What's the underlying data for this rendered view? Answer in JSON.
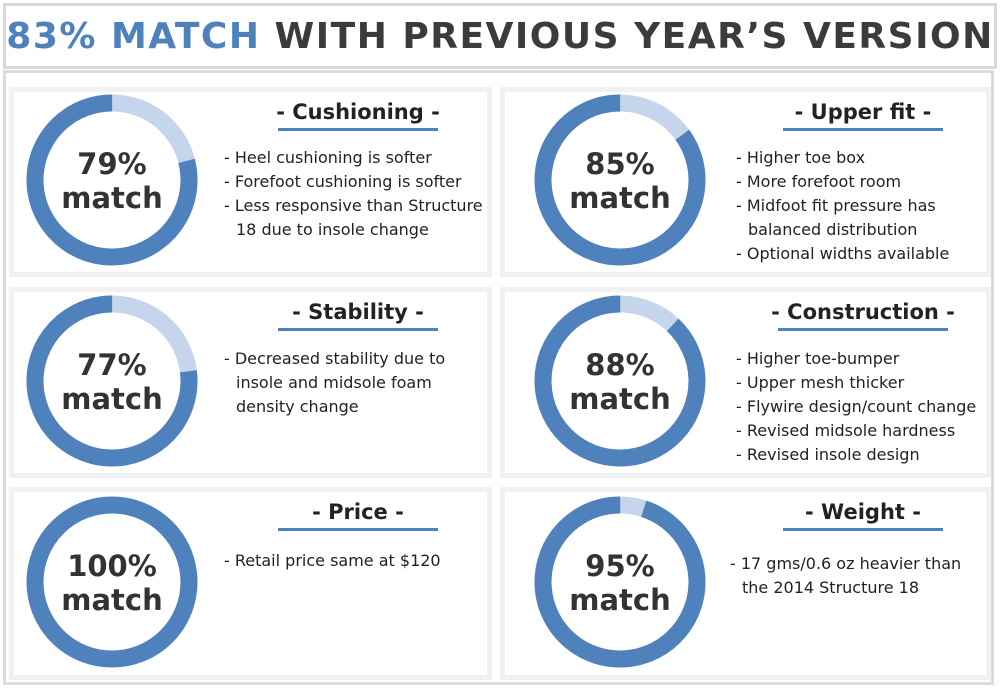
{
  "header": {
    "accent": "83% MATCH",
    "rest": "WITH PREVIOUS YEAR’S VERSION"
  },
  "colors": {
    "ring_filled": "#4f81bd",
    "ring_remaining": "#c5d5eb",
    "heading_bar": "#4f81bd",
    "panel_bg": "#f1f1f1"
  },
  "chart_data": [
    {
      "type": "pie",
      "title": "- Cushioning -",
      "value": 79,
      "max": 100,
      "label_pct": "79%",
      "label_word": "match",
      "bullets": [
        "- Heel cushioning is softer",
        "- Forefoot cushioning is softer",
        "- Less responsive than Structure 18 due to insole change"
      ]
    },
    {
      "type": "pie",
      "title": "- Upper fit -",
      "value": 85,
      "max": 100,
      "label_pct": "85%",
      "label_word": "match",
      "bullets": [
        "- Higher toe box",
        "- More forefoot room",
        "- Midfoot fit pressure has balanced distribution",
        "- Optional widths available"
      ]
    },
    {
      "type": "pie",
      "title": "- Stability -",
      "value": 77,
      "max": 100,
      "label_pct": "77%",
      "label_word": "match",
      "bullets": [
        "- Decreased stability due to insole and midsole foam density change"
      ]
    },
    {
      "type": "pie",
      "title": "- Construction -",
      "value": 88,
      "max": 100,
      "label_pct": "88%",
      "label_word": "match",
      "bullets": [
        "- Higher toe-bumper",
        "- Upper mesh thicker",
        "- Flywire design/count change",
        "- Revised midsole hardness",
        "- Revised insole design"
      ]
    },
    {
      "type": "pie",
      "title": "- Price -",
      "value": 100,
      "max": 100,
      "label_pct": "100%",
      "label_word": "match",
      "bullets": [
        "-  Retail price same at  $120"
      ]
    },
    {
      "type": "pie",
      "title": "- Weight -",
      "value": 95,
      "max": 100,
      "label_pct": "95%",
      "label_word": "match",
      "bullets": [
        "- 17 gms/0.6 oz heavier than the 2014 Structure 18"
      ]
    }
  ]
}
